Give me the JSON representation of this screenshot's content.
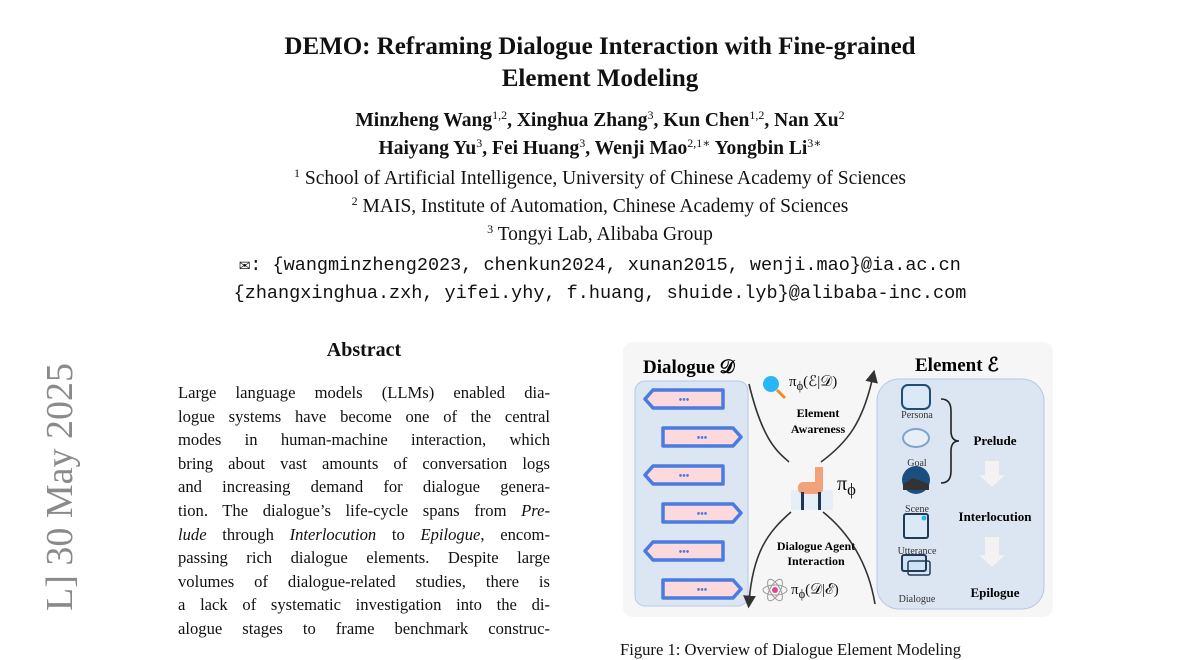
{
  "paper": {
    "title_lines": [
      "DEMO: Reframing Dialogue Interaction with Fine-grained",
      "Element Modeling"
    ],
    "authors": [
      {
        "name": "Minzheng Wang",
        "aff": "1,2"
      },
      {
        "name": "Xinghua Zhang",
        "aff": "3"
      },
      {
        "name": "Kun Chen",
        "aff": "1,2"
      },
      {
        "name": "Nan Xu",
        "aff": "2"
      },
      {
        "name": "Haiyang Yu",
        "aff": "3"
      },
      {
        "name": "Fei Huang",
        "aff": "3"
      },
      {
        "name": "Wenji Mao",
        "aff": "2,1∗"
      },
      {
        "name": "Yongbin Li",
        "aff": "3∗"
      }
    ],
    "affiliations": [
      {
        "num": "1",
        "text": "School of Artificial Intelligence, University of Chinese Academy of Sciences"
      },
      {
        "num": "2",
        "text": "MAIS, Institute of Automation, Chinese Academy of Sciences"
      },
      {
        "num": "3",
        "text": "Tongyi Lab, Alibaba Group"
      }
    ],
    "emails": [
      "✉: {wangminzheng2023, chenkun2024, xunan2015, wenji.mao}@ia.ac.cn",
      "{zhangxinghua.zxh, yifei.yhy, f.huang, shuide.lyb}@alibaba-inc.com"
    ],
    "arxiv_stamp": "L]  30 May 2025"
  },
  "abstract": {
    "heading": "Abstract",
    "lines": [
      "Large language models (LLMs) enabled dia-",
      "logue systems have become one of the central",
      "modes in human-machine interaction, which",
      "bring about vast amounts of conversation logs",
      "and increasing demand for dialogue genera-",
      "tion. The dialogue’s life-cycle spans from <i>Pre-</i>",
      "<i>lude</i> through <i>Interlocution</i> to <i>Epilogue</i>, encom-",
      "passing rich dialogue elements. Despite large",
      "volumes of dialogue-related studies, there is",
      "a lack of systematic investigation into the di-",
      "alogue stages to frame benchmark construc-"
    ]
  },
  "figure": {
    "left_title": "Dialogue 𝒟",
    "right_title": "Element ℰ",
    "top_formula": "π<sub>ϕ</sub>(ℰ|𝒟)",
    "top_label": [
      "Element",
      "Awareness"
    ],
    "bottom_label": [
      "Dialogue Agent",
      "Interaction"
    ],
    "bottom_formula": "π<sub>ϕ</sub>(𝒟|ℰ)",
    "policy": "π<sub>ϕ</sub>",
    "elements": [
      "Persona",
      "Goal",
      "Scene",
      "Utterance",
      "Dialogue"
    ],
    "stages": [
      "Prelude",
      "Interlocution",
      "Epilogue"
    ],
    "bubble_text": "•••",
    "colors": {
      "panel": "#dce6f3",
      "bubble_border": "#4a7be0",
      "bubble_fill": "#fbd9dc",
      "figure_bg": "#f6f6f6"
    }
  },
  "caption": "Figure 1: Overview of Dialogue Element Modeling"
}
